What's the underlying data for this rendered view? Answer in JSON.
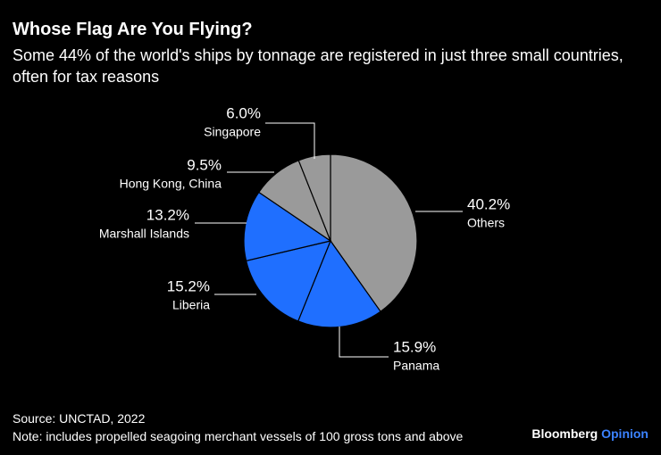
{
  "chart_data": {
    "type": "pie",
    "title": "Whose Flag Are You Flying?",
    "subtitle": "Some 44% of the world's ships by tonnage are registered in just three small countries, often for tax reasons",
    "categories": [
      "Others",
      "Panama",
      "Liberia",
      "Marshall Islands",
      "Hong Kong, China",
      "Singapore"
    ],
    "values": [
      40.2,
      15.9,
      15.2,
      13.2,
      9.5,
      6.0
    ],
    "value_labels": [
      "40.2%",
      "15.9%",
      "15.2%",
      "13.2%",
      "9.5%",
      "6.0%"
    ],
    "colors": [
      "#9a9a9a",
      "#1f6fff",
      "#1f6fff",
      "#1f6fff",
      "#9a9a9a",
      "#9a9a9a"
    ],
    "source": "Source: UNCTAD, 2022",
    "note": "Note: includes propelled seagoing merchant vessels of 100 gross tons and above",
    "brand": "Bloomberg",
    "brand_suffix": "Opinion"
  }
}
